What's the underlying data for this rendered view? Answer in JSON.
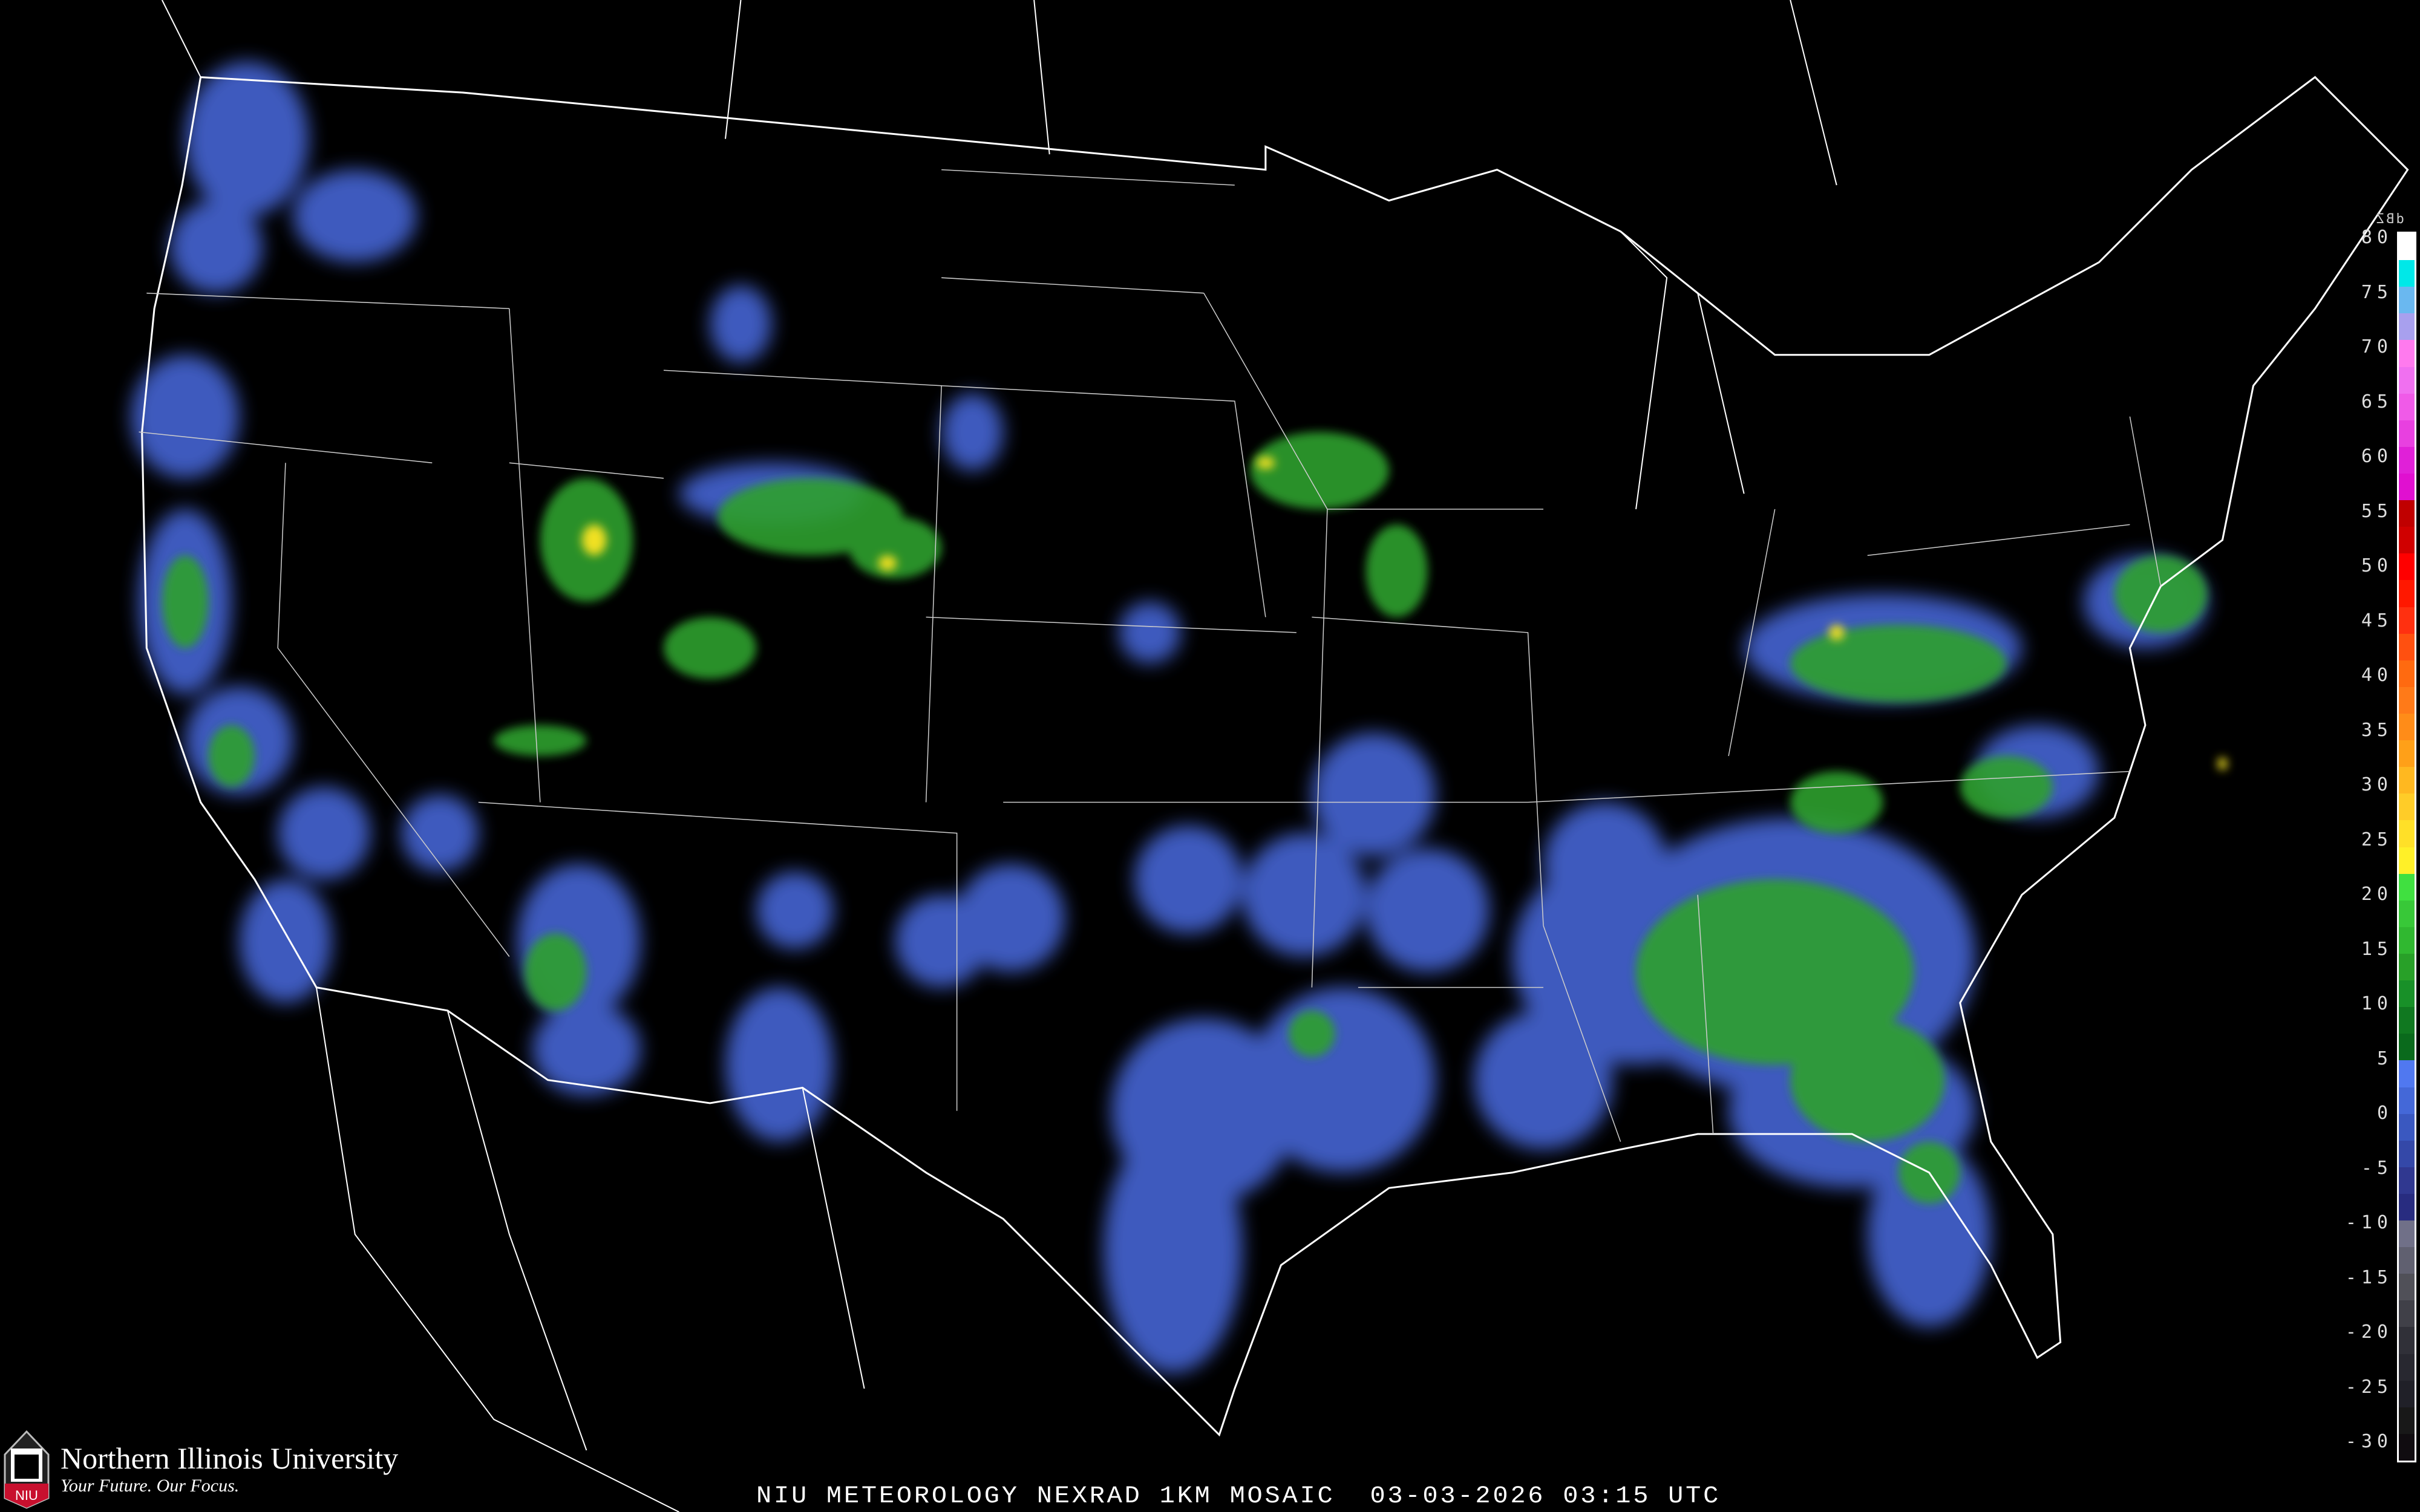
{
  "title": "NIU METEOROLOGY NEXRAD 1KM MOSAIC  03-03-2026 03:15 UTC",
  "branding": {
    "university": "Northern Illinois University",
    "tagline": "Your Future. Our Focus.",
    "logo_text": "NIU",
    "logo_color": "#c8102e"
  },
  "legend": {
    "unit": "dBZ",
    "tick_labels": [
      "80",
      "75",
      "70",
      "65",
      "60",
      "55",
      "50",
      "45",
      "40",
      "35",
      "30",
      "25",
      "20",
      "15",
      "10",
      "5",
      "0",
      "-5",
      "-10",
      "-15",
      "-20",
      "-25",
      "-30"
    ],
    "colors": [
      "#ffffff",
      "#00e8e8",
      "#6ab8f0",
      "#a8a0ee",
      "#ff7aee",
      "#f070f0",
      "#f05ae8",
      "#e840e0",
      "#e020d8",
      "#e010d0",
      "#c00000",
      "#d00000",
      "#ff0000",
      "#ff1800",
      "#ff3010",
      "#ff5010",
      "#ff6a10",
      "#ff7a18",
      "#ff8c18",
      "#ffa018",
      "#ffb820",
      "#ffcc28",
      "#ffe028",
      "#fff028",
      "#40e040",
      "#38c838",
      "#30b830",
      "#28a028",
      "#189028",
      "#107820",
      "#0a6a1c",
      "#5078f0",
      "#4468d8",
      "#3a58c0",
      "#3448a8",
      "#303890",
      "#282c80",
      "#707088",
      "#606070",
      "#505058",
      "#404048",
      "#303038",
      "#282830",
      "#202028",
      "#181818",
      "#100c10"
    ]
  },
  "map": {
    "background": "#000000",
    "boundary_color": "#ffffff",
    "road_color": "#8a4a2a",
    "echo_colors": {
      "light": "#4a6ae0",
      "moderate": "#2ea02e",
      "heavy": "#f0e020",
      "intense": "#e03010"
    }
  }
}
